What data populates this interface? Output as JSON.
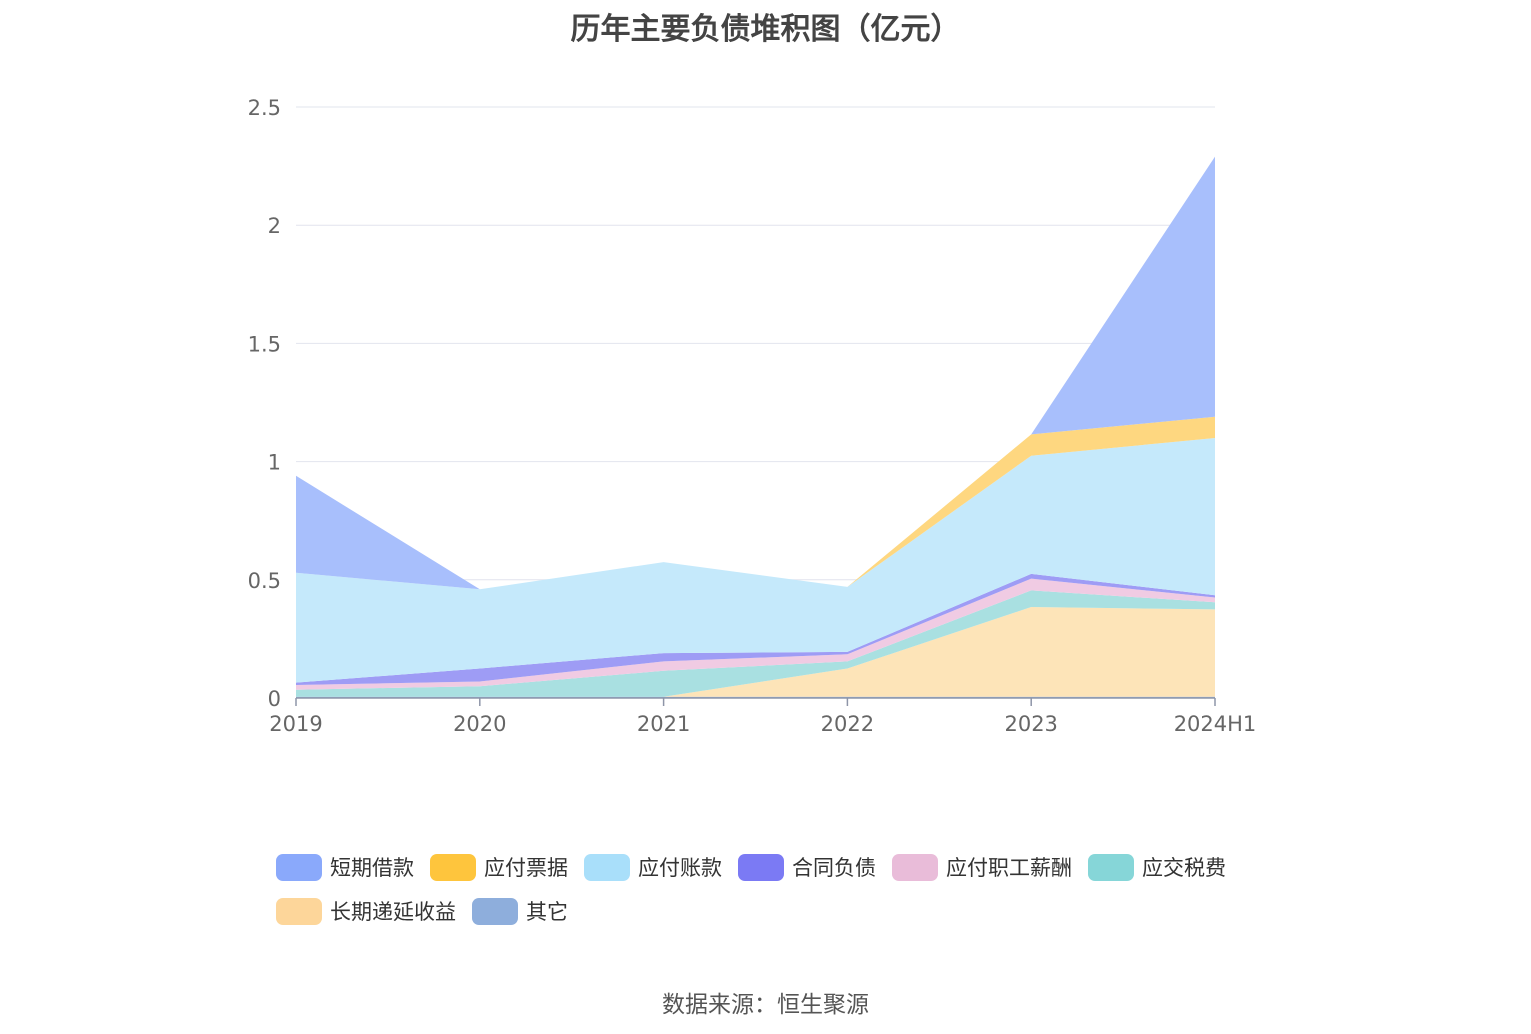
{
  "chart_data": {
    "type": "area",
    "stacked": true,
    "title": "历年主要负债堆积图（亿元）",
    "source": "数据来源：恒生聚源",
    "categories": [
      "2019",
      "2020",
      "2021",
      "2022",
      "2023",
      "2024H1"
    ],
    "ylim": [
      0,
      2.5
    ],
    "yticks": [
      0,
      0.5,
      1,
      1.5,
      2,
      2.5
    ],
    "ytick_labels": [
      "0",
      "0.5",
      "1",
      "1.5",
      "2",
      "2.5"
    ],
    "grid": true,
    "legend_position": "bottom",
    "series": [
      {
        "name": "其它",
        "color": "#8eaedc",
        "values": [
          0.005,
          0.005,
          0.005,
          0.005,
          0.005,
          0.005
        ]
      },
      {
        "name": "长期递延收益",
        "color": "#fde4b8",
        "values": [
          0,
          0,
          0,
          0.12,
          0.38,
          0.37
        ]
      },
      {
        "name": "应交税费",
        "color": "#a9e0e1",
        "values": [
          0.03,
          0.045,
          0.11,
          0.03,
          0.07,
          0.03
        ]
      },
      {
        "name": "应付职工薪酬",
        "color": "#f0cbe3",
        "values": [
          0.02,
          0.02,
          0.04,
          0.03,
          0.05,
          0.02
        ]
      },
      {
        "name": "合同负债",
        "color": "#9e9cf5",
        "values": [
          0.01,
          0.055,
          0.035,
          0.01,
          0.02,
          0.01
        ]
      },
      {
        "name": "应付账款",
        "color": "#c5e9fb",
        "values": [
          0.465,
          0.335,
          0.385,
          0.275,
          0.5,
          0.665
        ]
      },
      {
        "name": "应付票据",
        "color": "#fed780",
        "values": [
          0,
          0,
          0,
          0,
          0.09,
          0.09
        ]
      },
      {
        "name": "短期借款",
        "color": "#a8bffc",
        "values": [
          0.41,
          0,
          0,
          0,
          0,
          1.1
        ]
      }
    ],
    "legend": [
      {
        "name": "短期借款",
        "color": "#8aa9fb"
      },
      {
        "name": "应付票据",
        "color": "#fec53d"
      },
      {
        "name": "应付账款",
        "color": "#a9dffa"
      },
      {
        "name": "合同负债",
        "color": "#7b7af4"
      },
      {
        "name": "应付职工薪酬",
        "color": "#e9bcd9"
      },
      {
        "name": "应交税费",
        "color": "#86d6d8"
      },
      {
        "name": "长期递延收益",
        "color": "#fdd69a"
      },
      {
        "name": "其它",
        "color": "#8eaedc"
      }
    ]
  }
}
